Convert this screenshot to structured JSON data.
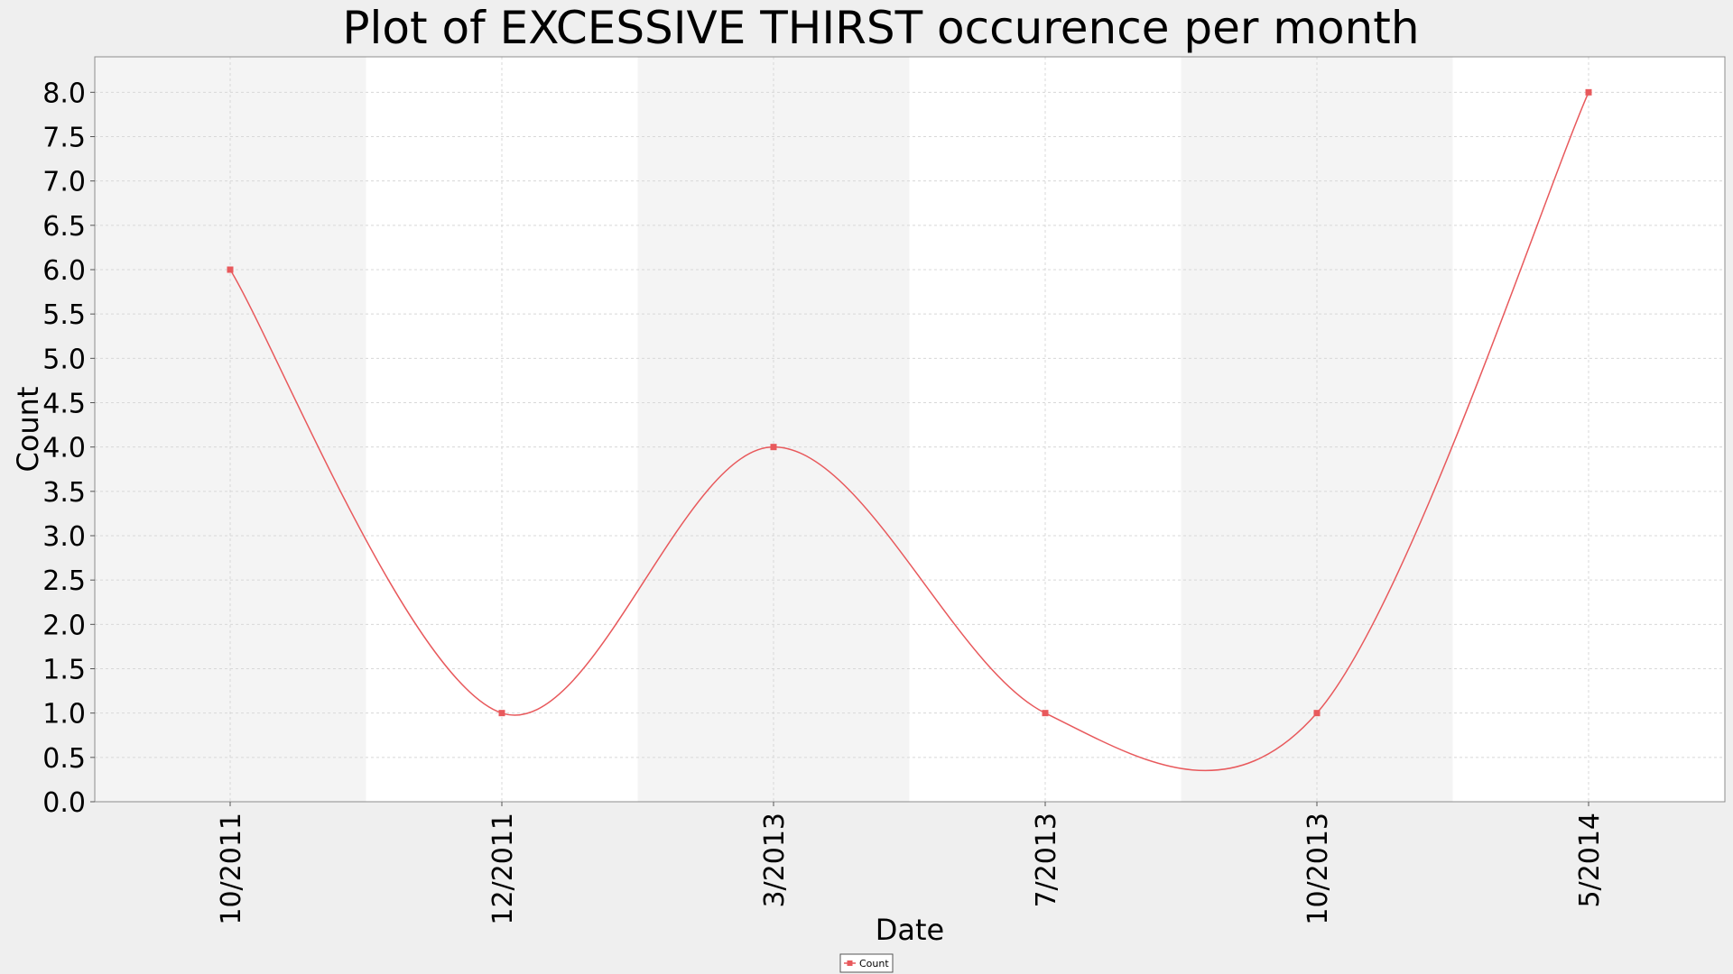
{
  "chart_data": {
    "type": "line",
    "title": "Plot of EXCESSIVE THIRST occurence per month",
    "xlabel": "Date",
    "ylabel": "Count",
    "ylim": [
      0,
      8.4
    ],
    "y_ticks": [
      "0.0",
      "0.5",
      "1.0",
      "1.5",
      "2.0",
      "2.5",
      "3.0",
      "3.5",
      "4.0",
      "4.5",
      "5.0",
      "5.5",
      "6.0",
      "6.5",
      "7.0",
      "7.5",
      "8.0"
    ],
    "x_tick_labels": [
      "10/2011",
      "12/2011",
      "3/2013",
      "7/2013",
      "10/2013",
      "5/2014"
    ],
    "series": [
      {
        "name": "Count",
        "color": "#e8595c",
        "points": [
          {
            "x": "10/2011",
            "y": 6
          },
          {
            "x": "12/2011",
            "y": 1
          },
          {
            "x": "3/2013",
            "y": 4
          },
          {
            "x": "7/2013",
            "y": 1
          },
          {
            "x": "10/2013",
            "y": 1
          },
          {
            "x": "5/2014",
            "y": 8
          }
        ]
      }
    ],
    "grid": true,
    "legend_position": "bottom-center",
    "colors": {
      "band_light": "#f4f4f4",
      "band_white": "#ffffff",
      "grid": "#d8d8d8",
      "frame": "#8c8c8c",
      "background": "#efefef"
    }
  }
}
